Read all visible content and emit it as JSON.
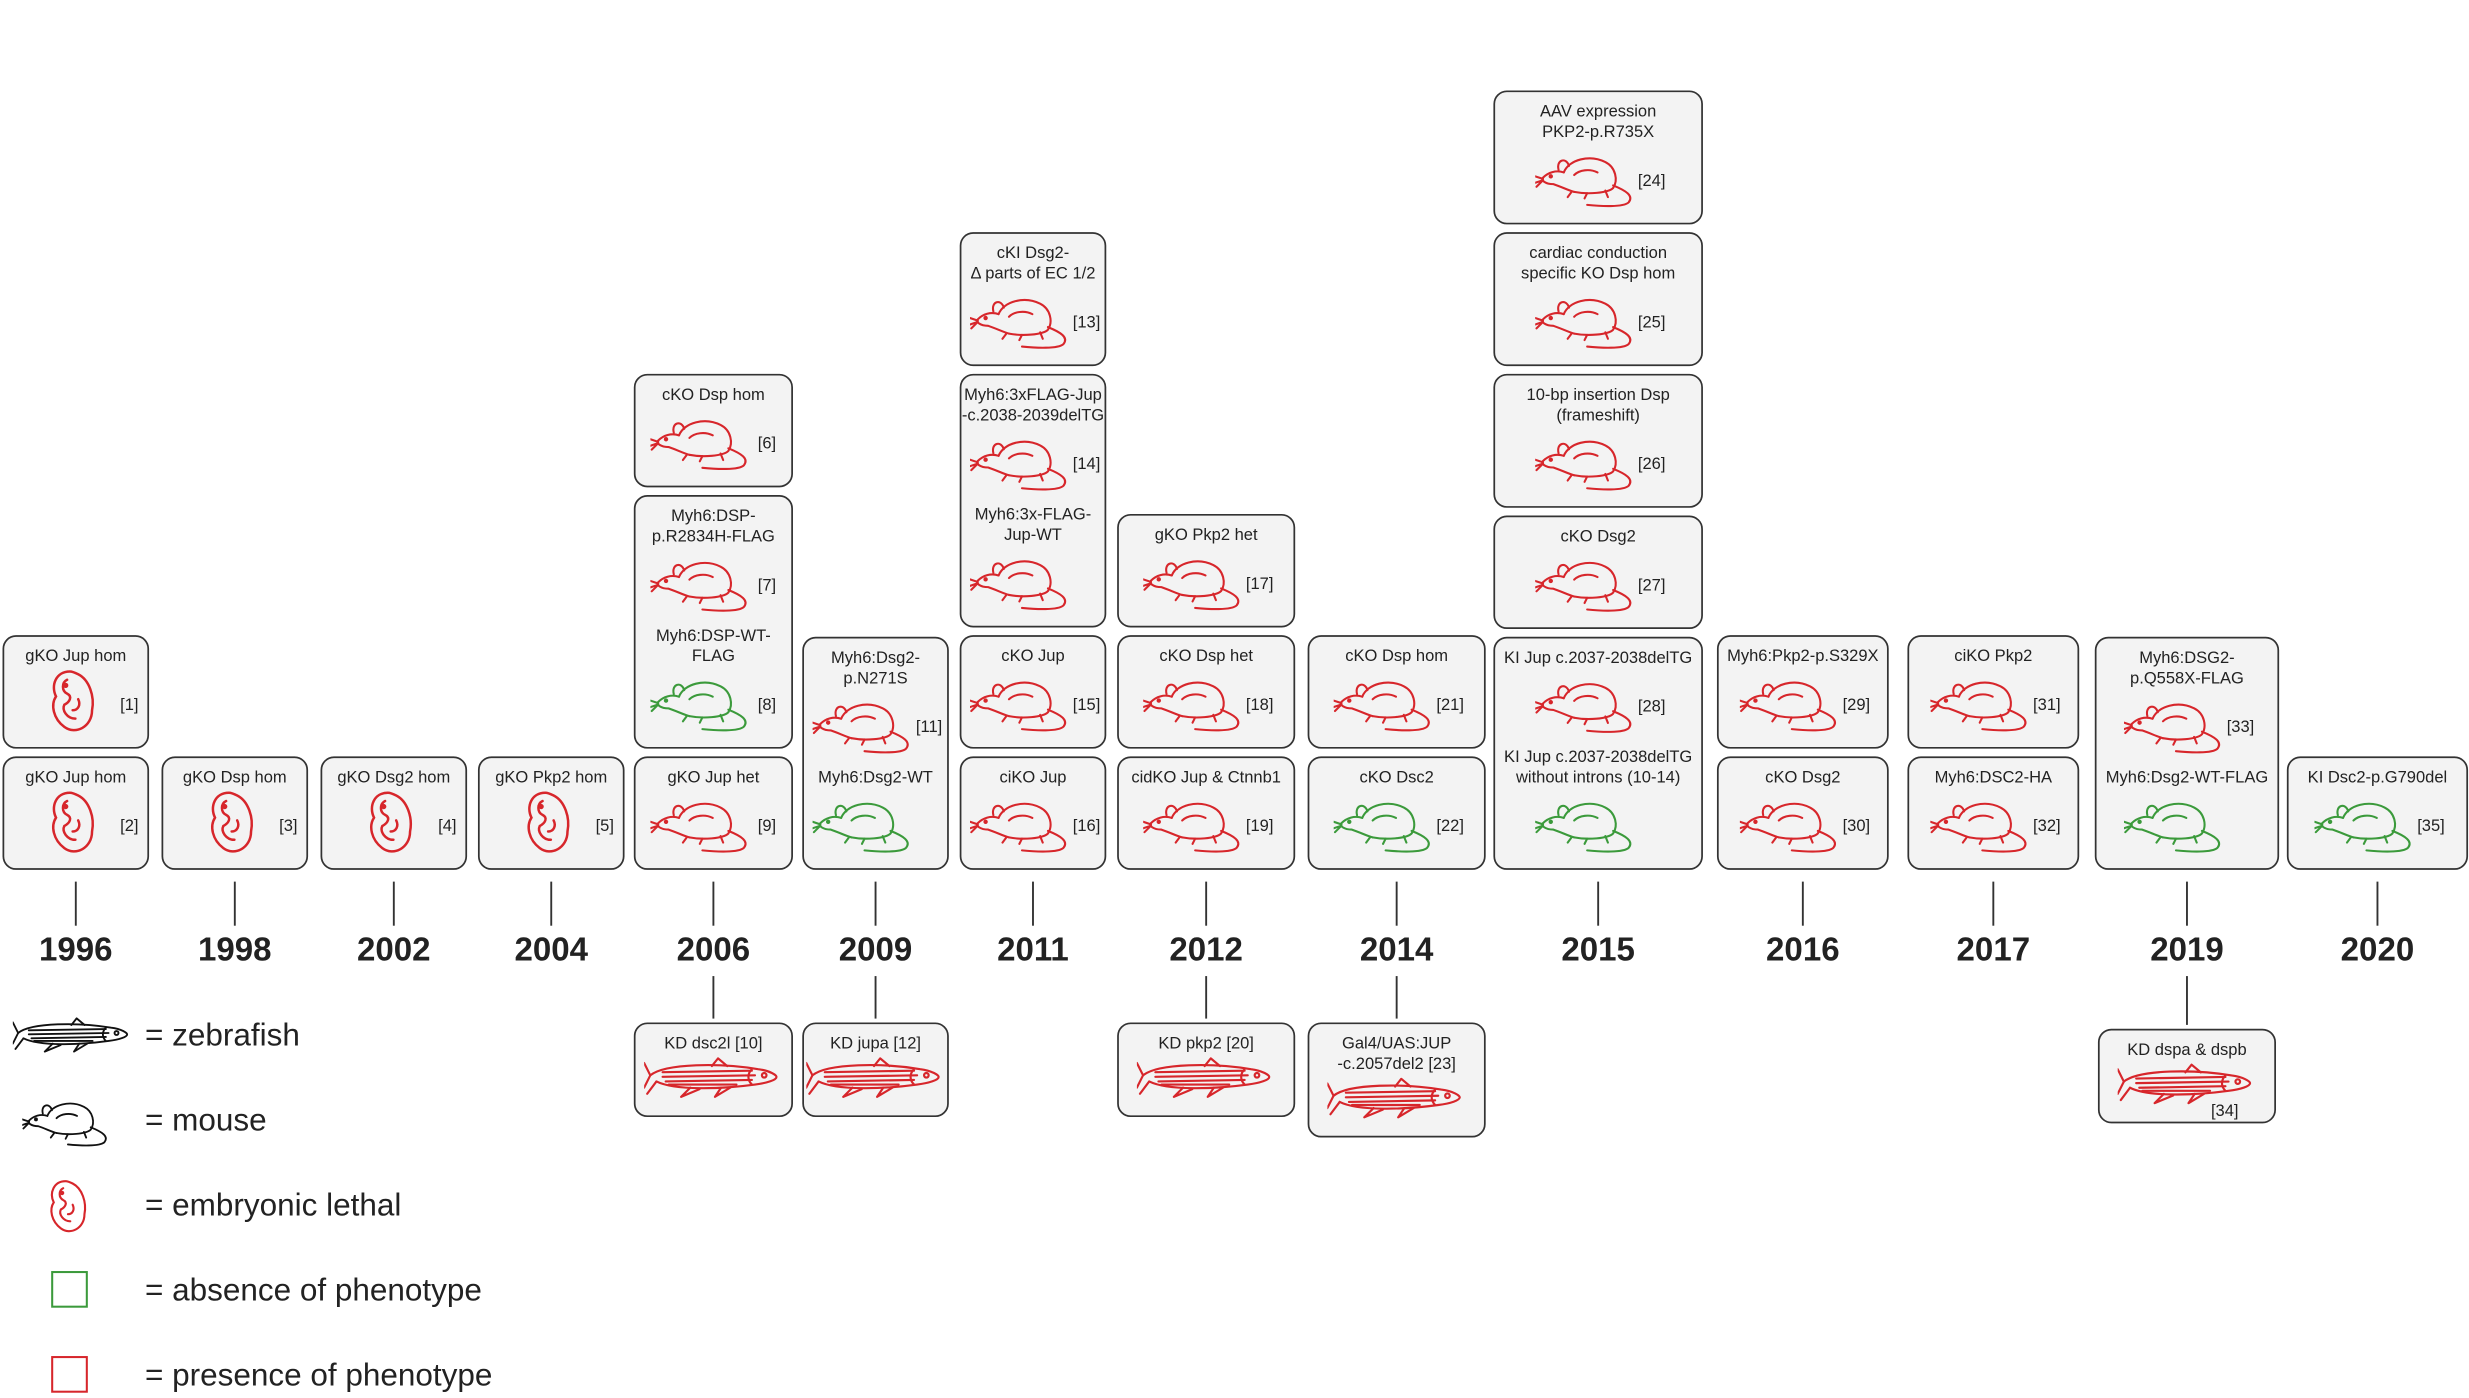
{
  "colors": {
    "present": "#d7262b",
    "absent": "#3b9a3b"
  },
  "years": [
    {
      "year": "1996",
      "boxes": [
        {
          "entries": [
            {
              "lines": [
                "gKO Jup hom"
              ],
              "ref": "[2]",
              "icon": "embryo",
              "phenotype": "present"
            }
          ]
        },
        {
          "entries": [
            {
              "lines": [
                "gKO Jup hom"
              ],
              "ref": "[1]",
              "icon": "embryo",
              "phenotype": "present"
            }
          ]
        }
      ]
    },
    {
      "year": "1998",
      "boxes": [
        {
          "entries": [
            {
              "lines": [
                "gKO Dsp hom"
              ],
              "ref": "[3]",
              "icon": "embryo",
              "phenotype": "present"
            }
          ]
        }
      ]
    },
    {
      "year": "2002",
      "boxes": [
        {
          "entries": [
            {
              "lines": [
                "gKO Dsg2 hom"
              ],
              "ref": "[4]",
              "icon": "embryo",
              "phenotype": "present"
            }
          ]
        }
      ]
    },
    {
      "year": "2004",
      "boxes": [
        {
          "entries": [
            {
              "lines": [
                "gKO Pkp2 hom"
              ],
              "ref": "[5]",
              "icon": "embryo",
              "phenotype": "present"
            }
          ]
        }
      ]
    },
    {
      "year": "2006",
      "boxes": [
        {
          "entries": [
            {
              "lines": [
                "gKO Jup het"
              ],
              "ref": "[9]",
              "icon": "mouse",
              "phenotype": "present"
            }
          ]
        },
        {
          "entries": [
            {
              "lines": [
                "Myh6:DSP-",
                "p.R2834H-FLAG"
              ],
              "ref": "[7]",
              "icon": "mouse",
              "phenotype": "present"
            },
            {
              "lines": [
                "Myh6:DSP-WT-",
                "FLAG"
              ],
              "ref": "[8]",
              "icon": "mouse",
              "phenotype": "absent"
            }
          ]
        },
        {
          "entries": [
            {
              "lines": [
                "cKO Dsp hom"
              ],
              "ref": "[6]",
              "icon": "mouse",
              "phenotype": "present"
            }
          ]
        }
      ],
      "fish": {
        "entries": [
          {
            "lines": [
              "KD dsc2l [10]"
            ],
            "icon": "fish",
            "phenotype": "present"
          }
        ]
      }
    },
    {
      "year": "2009",
      "boxes": [
        {
          "entries": [
            {
              "lines": [
                "Myh6:Dsg2-",
                "p.N271S"
              ],
              "ref": "[11]",
              "icon": "mouse",
              "phenotype": "present"
            },
            {
              "lines": [
                "Myh6:Dsg2-WT"
              ],
              "icon": "mouse",
              "phenotype": "absent"
            }
          ]
        }
      ],
      "fish": {
        "entries": [
          {
            "lines": [
              "KD jupa [12]"
            ],
            "icon": "fish",
            "phenotype": "present"
          }
        ]
      }
    },
    {
      "year": "2011",
      "boxes": [
        {
          "entries": [
            {
              "lines": [
                "ciKO Jup"
              ],
              "ref": "[16]",
              "icon": "mouse",
              "phenotype": "present"
            }
          ]
        },
        {
          "entries": [
            {
              "lines": [
                "cKO Jup"
              ],
              "ref": "[15]",
              "icon": "mouse",
              "phenotype": "present"
            }
          ]
        },
        {
          "entries": [
            {
              "lines": [
                "Myh6:3xFLAG-Jup",
                "-c.2038-2039delTG"
              ],
              "ref": "[14]",
              "icon": "mouse",
              "phenotype": "present"
            },
            {
              "lines": [
                "Myh6:3x-FLAG-",
                "Jup-WT"
              ],
              "icon": "mouse",
              "phenotype": "present"
            }
          ]
        },
        {
          "entries": [
            {
              "lines": [
                "cKI Dsg2-",
                "Δ parts of EC 1/2"
              ],
              "ref": "[13]",
              "icon": "mouse",
              "phenotype": "present"
            }
          ]
        }
      ]
    },
    {
      "year": "2012",
      "boxes": [
        {
          "entries": [
            {
              "lines": [
                "cidKO Jup & Ctnnb1"
              ],
              "ref": "[19]",
              "icon": "mouse",
              "phenotype": "present"
            }
          ]
        },
        {
          "entries": [
            {
              "lines": [
                "cKO Dsp het"
              ],
              "ref": "[18]",
              "icon": "mouse",
              "phenotype": "present"
            }
          ]
        },
        {
          "entries": [
            {
              "lines": [
                "gKO Pkp2 het"
              ],
              "ref": "[17]",
              "icon": "mouse",
              "phenotype": "present"
            }
          ]
        }
      ],
      "fish": {
        "entries": [
          {
            "lines": [
              "KD pkp2 [20]"
            ],
            "icon": "fish",
            "phenotype": "present"
          }
        ]
      }
    },
    {
      "year": "2014",
      "boxes": [
        {
          "entries": [
            {
              "lines": [
                "cKO Dsc2"
              ],
              "ref": "[22]",
              "icon": "mouse",
              "phenotype": "absent"
            }
          ]
        },
        {
          "entries": [
            {
              "lines": [
                "cKO Dsp hom"
              ],
              "ref": "[21]",
              "icon": "mouse",
              "phenotype": "present"
            }
          ]
        }
      ],
      "fish": {
        "entries": [
          {
            "lines": [
              "Gal4/UAS:JUP",
              "-c.2057del2 [23]"
            ],
            "icon": "fish",
            "phenotype": "present"
          }
        ]
      }
    },
    {
      "year": "2015",
      "boxes": [
        {
          "entries": [
            {
              "lines": [
                "KI Jup c.2037-2038delTG"
              ],
              "ref": "[28]",
              "icon": "mouse",
              "phenotype": "present"
            },
            {
              "lines": [
                "KI Jup c.2037-2038delTG",
                "without introns (10-14)"
              ],
              "icon": "mouse",
              "phenotype": "absent"
            }
          ]
        },
        {
          "entries": [
            {
              "lines": [
                "cKO Dsg2"
              ],
              "ref": "[27]",
              "icon": "mouse",
              "phenotype": "present"
            }
          ]
        },
        {
          "entries": [
            {
              "lines": [
                "10-bp insertion Dsp",
                "(frameshift)"
              ],
              "ref": "[26]",
              "icon": "mouse",
              "phenotype": "present"
            }
          ]
        },
        {
          "entries": [
            {
              "lines": [
                "cardiac conduction",
                "specific KO Dsp hom"
              ],
              "ref": "[25]",
              "icon": "mouse",
              "phenotype": "present"
            }
          ]
        },
        {
          "entries": [
            {
              "lines": [
                "AAV expression",
                "PKP2-p.R735X"
              ],
              "ref": "[24]",
              "icon": "mouse",
              "phenotype": "present"
            }
          ]
        }
      ]
    },
    {
      "year": "2016",
      "boxes": [
        {
          "entries": [
            {
              "lines": [
                "cKO Dsg2"
              ],
              "ref": "[30]",
              "icon": "mouse",
              "phenotype": "present"
            }
          ]
        },
        {
          "entries": [
            {
              "lines": [
                "Myh6:Pkp2-p.S329X"
              ],
              "ref": "[29]",
              "icon": "mouse",
              "phenotype": "present"
            }
          ]
        }
      ]
    },
    {
      "year": "2017",
      "boxes": [
        {
          "entries": [
            {
              "lines": [
                "Myh6:DSC2-HA"
              ],
              "ref": "[32]",
              "icon": "mouse",
              "phenotype": "present"
            }
          ]
        },
        {
          "entries": [
            {
              "lines": [
                "ciKO Pkp2"
              ],
              "ref": "[31]",
              "icon": "mouse",
              "phenotype": "present"
            }
          ]
        }
      ]
    },
    {
      "year": "2019",
      "boxes": [
        {
          "entries": [
            {
              "lines": [
                "Myh6:DSG2-",
                "p.Q558X-FLAG"
              ],
              "ref": "[33]",
              "icon": "mouse",
              "phenotype": "present"
            },
            {
              "lines": [
                "Myh6:Dsg2-WT-FLAG"
              ],
              "icon": "mouse",
              "phenotype": "absent"
            }
          ]
        }
      ],
      "fish": {
        "entries": [
          {
            "lines": [
              "KD dspa & dspb"
            ],
            "ref": "[34]",
            "icon": "fish",
            "phenotype": "present"
          }
        ]
      }
    },
    {
      "year": "2020",
      "boxes": [
        {
          "entries": [
            {
              "lines": [
                "KI Dsc2-p.G790del"
              ],
              "ref": "[35]",
              "icon": "mouse",
              "phenotype": "absent"
            }
          ]
        }
      ]
    }
  ],
  "legend": {
    "items": [
      {
        "icon": "fish",
        "text": "= zebrafish"
      },
      {
        "icon": "mouse",
        "text": "= mouse"
      },
      {
        "icon": "embryo",
        "phenotype": "present",
        "text": "= embryonic lethal"
      },
      {
        "icon": "swatch",
        "phenotype": "absent",
        "text": "= absence of phenotype"
      },
      {
        "icon": "swatch",
        "phenotype": "present",
        "text": "= presence of phenotype"
      }
    ]
  }
}
